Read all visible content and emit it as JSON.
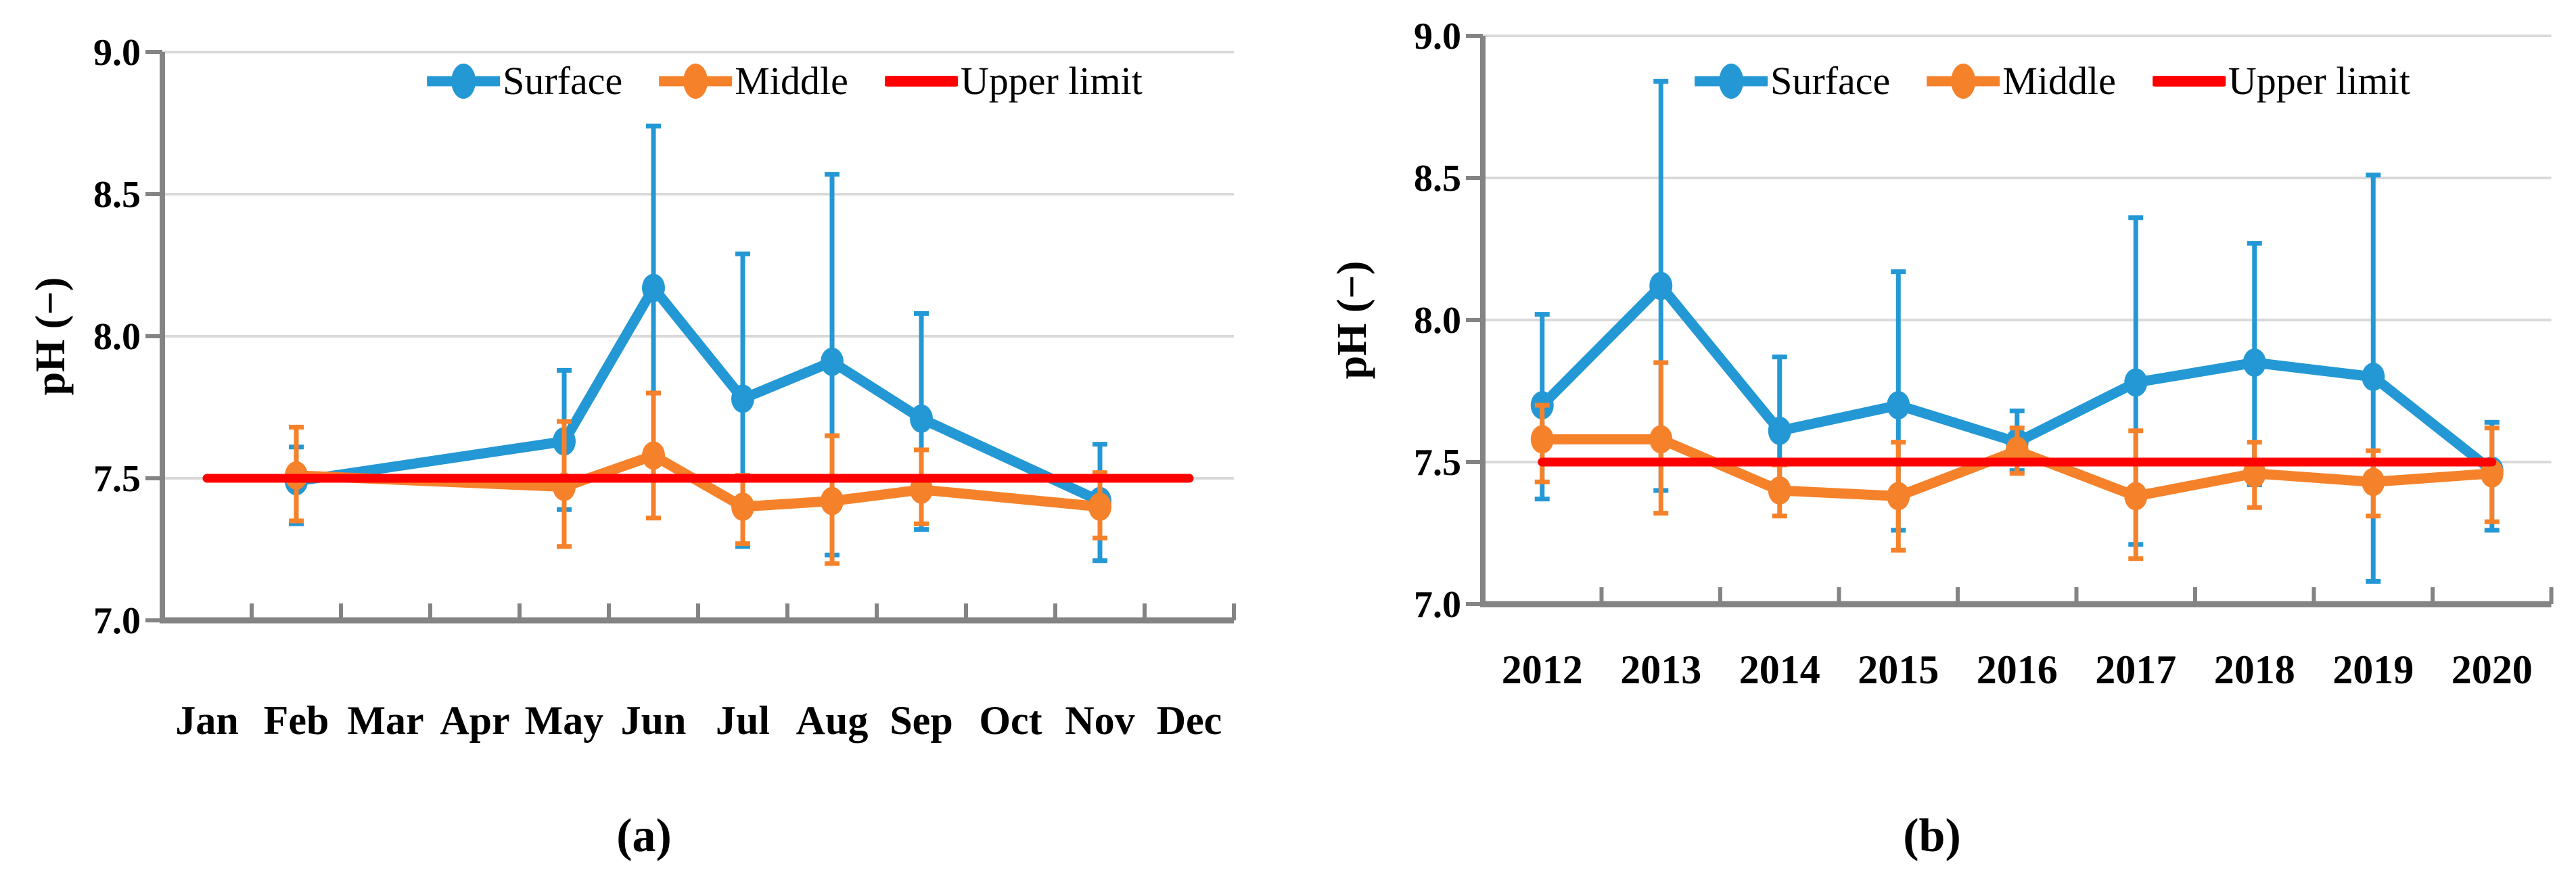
{
  "page": {
    "background": "#FFFFFF"
  },
  "colors": {
    "surface": "#2498D5",
    "middle": "#F5822B",
    "upper_limit": "#FF0000",
    "gridline": "#D9D9D9",
    "axis": "#848484",
    "text": "#000000"
  },
  "legend": {
    "items": [
      {
        "id": "surface",
        "label": "Surface"
      },
      {
        "id": "middle",
        "label": "Middle"
      },
      {
        "id": "upper_limit",
        "label": "Upper limit"
      }
    ]
  },
  "chart_data": [
    {
      "id": "a",
      "type": "line",
      "caption": "(a)",
      "title": "",
      "xlabel": "",
      "ylabel": "pH (−)",
      "ylim": [
        7.0,
        9.0
      ],
      "grid": true,
      "legend_position": "top-center",
      "yticks": [
        {
          "value": 7.0,
          "label": "7.0"
        },
        {
          "value": 7.5,
          "label": "7.5"
        },
        {
          "value": 8.0,
          "label": "8.0"
        },
        {
          "value": 8.5,
          "label": "8.5"
        },
        {
          "value": 9.0,
          "label": "9.0"
        }
      ],
      "categories": [
        "Jan",
        "Feb",
        "Mar",
        "Apr",
        "May",
        "Jun",
        "Jul",
        "Aug",
        "Sep",
        "Oct",
        "Nov",
        "Dec"
      ],
      "series": [
        {
          "name": "Surface",
          "color": "surface",
          "points": [
            {
              "cat": "Feb",
              "y": 7.49,
              "lo": 7.34,
              "hi": 7.61
            },
            {
              "cat": "May",
              "y": 7.63,
              "lo": 7.39,
              "hi": 7.88
            },
            {
              "cat": "Jun",
              "y": 8.17,
              "lo": 7.8,
              "hi": 8.74
            },
            {
              "cat": "Jul",
              "y": 7.78,
              "lo": 7.26,
              "hi": 8.29
            },
            {
              "cat": "Aug",
              "y": 7.91,
              "lo": 7.23,
              "hi": 8.57
            },
            {
              "cat": "Sep",
              "y": 7.71,
              "lo": 7.32,
              "hi": 8.08
            },
            {
              "cat": "Nov",
              "y": 7.42,
              "lo": 7.21,
              "hi": 7.62
            }
          ]
        },
        {
          "name": "Middle",
          "color": "middle",
          "points": [
            {
              "cat": "Feb",
              "y": 7.51,
              "lo": 7.35,
              "hi": 7.68
            },
            {
              "cat": "May",
              "y": 7.47,
              "lo": 7.26,
              "hi": 7.7
            },
            {
              "cat": "Jun",
              "y": 7.58,
              "lo": 7.36,
              "hi": 7.8
            },
            {
              "cat": "Jul",
              "y": 7.4,
              "lo": 7.27,
              "hi": 7.51
            },
            {
              "cat": "Aug",
              "y": 7.42,
              "lo": 7.2,
              "hi": 7.65
            },
            {
              "cat": "Sep",
              "y": 7.46,
              "lo": 7.34,
              "hi": 7.6
            },
            {
              "cat": "Nov",
              "y": 7.4,
              "lo": 7.29,
              "hi": 7.52
            }
          ]
        },
        {
          "name": "Upper limit",
          "color": "upper_limit",
          "constant": 7.5,
          "from": "Jan",
          "to": "Dec"
        }
      ]
    },
    {
      "id": "b",
      "type": "line",
      "caption": "(b)",
      "title": "",
      "xlabel": "",
      "ylabel": "pH (−)",
      "ylim": [
        7.0,
        9.0
      ],
      "grid": true,
      "legend_position": "top-center",
      "yticks": [
        {
          "value": 7.0,
          "label": "7.0"
        },
        {
          "value": 7.5,
          "label": "7.5"
        },
        {
          "value": 8.0,
          "label": "8.0"
        },
        {
          "value": 8.5,
          "label": "8.5"
        },
        {
          "value": 9.0,
          "label": "9.0"
        }
      ],
      "categories": [
        "2012",
        "2013",
        "2014",
        "2015",
        "2016",
        "2017",
        "2018",
        "2019",
        "2020"
      ],
      "series": [
        {
          "name": "Surface",
          "color": "surface",
          "points": [
            {
              "cat": "2012",
              "y": 7.7,
              "lo": 7.37,
              "hi": 8.02
            },
            {
              "cat": "2013",
              "y": 8.12,
              "lo": 7.4,
              "hi": 8.84
            },
            {
              "cat": "2014",
              "y": 7.61,
              "lo": 7.42,
              "hi": 7.87
            },
            {
              "cat": "2015",
              "y": 7.7,
              "lo": 7.26,
              "hi": 8.17
            },
            {
              "cat": "2016",
              "y": 7.57,
              "lo": 7.47,
              "hi": 7.68
            },
            {
              "cat": "2017",
              "y": 7.78,
              "lo": 7.21,
              "hi": 8.36
            },
            {
              "cat": "2018",
              "y": 7.85,
              "lo": 7.42,
              "hi": 8.27
            },
            {
              "cat": "2019",
              "y": 7.8,
              "lo": 7.08,
              "hi": 8.51
            },
            {
              "cat": "2020",
              "y": 7.47,
              "lo": 7.26,
              "hi": 7.64
            }
          ]
        },
        {
          "name": "Middle",
          "color": "middle",
          "points": [
            {
              "cat": "2012",
              "y": 7.58,
              "lo": 7.43,
              "hi": 7.7
            },
            {
              "cat": "2013",
              "y": 7.58,
              "lo": 7.32,
              "hi": 7.85
            },
            {
              "cat": "2014",
              "y": 7.4,
              "lo": 7.31,
              "hi": 7.49
            },
            {
              "cat": "2015",
              "y": 7.38,
              "lo": 7.19,
              "hi": 7.57
            },
            {
              "cat": "2016",
              "y": 7.54,
              "lo": 7.46,
              "hi": 7.62
            },
            {
              "cat": "2017",
              "y": 7.38,
              "lo": 7.16,
              "hi": 7.61
            },
            {
              "cat": "2018",
              "y": 7.46,
              "lo": 7.34,
              "hi": 7.57
            },
            {
              "cat": "2019",
              "y": 7.43,
              "lo": 7.31,
              "hi": 7.54
            },
            {
              "cat": "2020",
              "y": 7.46,
              "lo": 7.29,
              "hi": 7.62
            }
          ]
        },
        {
          "name": "Upper limit",
          "color": "upper_limit",
          "constant": 7.5,
          "from": "2012",
          "to": "2020"
        }
      ]
    }
  ]
}
